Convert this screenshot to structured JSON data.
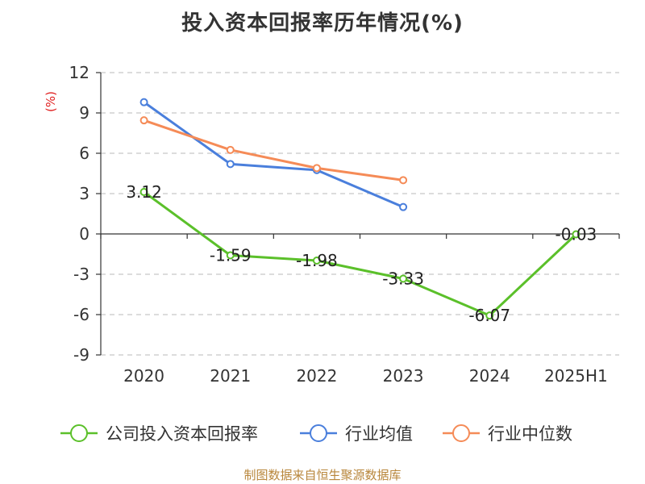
{
  "chart_data": {
    "type": "line",
    "title": "投入资本回报率历年情况(%)",
    "ylabel": "(%)",
    "categories": [
      "2020",
      "2021",
      "2022",
      "2023",
      "2024",
      "2025H1"
    ],
    "ylim": [
      -9,
      12
    ],
    "yticks": [
      12,
      9,
      6,
      3,
      0,
      -3,
      -6,
      -9
    ],
    "grid": true,
    "legend_position": "bottom",
    "series": [
      {
        "name": "公司投入资本回报率",
        "color": "#5bc02a",
        "values": [
          3.12,
          -1.59,
          -1.98,
          -3.33,
          -6.07,
          -0.03
        ],
        "labels": [
          "3.12",
          "-1.59",
          "-1.98",
          "-3.33",
          "-6.07",
          "-0.03"
        ]
      },
      {
        "name": "行业均值",
        "color": "#4a7fdc",
        "values": [
          9.8,
          5.2,
          4.75,
          2.0,
          null,
          null
        ]
      },
      {
        "name": "行业中位数",
        "color": "#f58b57",
        "values": [
          8.45,
          6.25,
          4.9,
          4.0,
          null,
          null
        ]
      }
    ]
  },
  "source": "制图数据来自恒生聚源数据库"
}
